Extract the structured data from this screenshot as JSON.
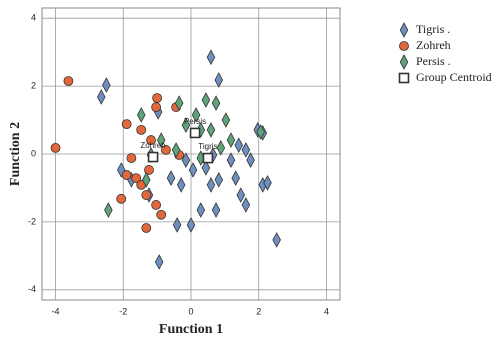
{
  "chart_data": {
    "type": "scatter",
    "x_label": "Function 1",
    "y_label": "Function 2",
    "xlim": [
      -4.4,
      4.4
    ],
    "ylim": [
      -4.3,
      4.3
    ],
    "xticks": [
      -4,
      -2,
      0,
      2,
      4
    ],
    "yticks": [
      -4,
      -2,
      0,
      2,
      4
    ],
    "grid": true,
    "legend": "right",
    "series": [
      {
        "name": "Tigris .",
        "color": "#6f8fbf",
        "marker": "diamond",
        "x": [
          0.59,
          0.82,
          -2.5,
          -2.65,
          -0.97,
          1.97,
          2.12,
          1.41,
          1.62,
          0.65,
          1.18,
          1.76,
          0.44,
          0.82,
          1.32,
          -0.15,
          0.06,
          -0.59,
          -0.29,
          0.59,
          2.12,
          2.26,
          1.47,
          1.62,
          0.29,
          0.74,
          -0.41,
          0,
          -0.94,
          2.53,
          -1.24,
          -1.76,
          -2.06
        ],
        "values": [
          2.85,
          2.18,
          2.03,
          1.68,
          1.24,
          0.71,
          0.62,
          0.26,
          0.12,
          -0.03,
          -0.18,
          -0.18,
          -0.41,
          -0.76,
          -0.71,
          -0.18,
          -0.47,
          -0.71,
          -0.91,
          -0.91,
          -0.91,
          -0.85,
          -1.21,
          -1.5,
          -1.65,
          -1.65,
          -2.09,
          -2.09,
          -3.18,
          -2.53,
          -1.21,
          -0.76,
          -0.47
        ]
      },
      {
        "name": "Zohreh",
        "color": "#e2673a",
        "marker": "circle",
        "x": [
          -3.62,
          -4.0,
          -1.0,
          -1.03,
          -0.44,
          -1.9,
          -1.47,
          -1.18,
          -1.76,
          -1.9,
          -1.62,
          -1.47,
          -1.24,
          -2.06,
          -1.32,
          -1.03,
          -0.88,
          -1.32,
          -0.35,
          -0.74
        ],
        "values": [
          2.15,
          0.18,
          1.65,
          1.38,
          1.38,
          0.88,
          0.71,
          0.41,
          -0.12,
          -0.62,
          -0.71,
          -0.91,
          -0.47,
          -1.32,
          -2.18,
          -1.5,
          -1.79,
          -1.21,
          -0.03,
          0.12
        ]
      },
      {
        "name": "Persis .",
        "color": "#5fa37a",
        "marker": "diamond",
        "x": [
          -1.47,
          -0.35,
          0.44,
          0.74,
          0.15,
          -0.15,
          0.29,
          0.59,
          1.03,
          2.06,
          1.18,
          0.88,
          -0.44,
          -1.18,
          -1.32,
          -2.44,
          0.29,
          -0.88
        ],
        "values": [
          1.15,
          1.5,
          1.59,
          1.5,
          1.15,
          0.85,
          0.71,
          0.71,
          1.0,
          0.65,
          0.41,
          0.18,
          0.12,
          -0.03,
          -0.76,
          -1.65,
          -0.12,
          0.41
        ]
      },
      {
        "name": "Group Centroid",
        "color": "#ffffff",
        "marker": "square",
        "x": [
          -1.12,
          0.12,
          0.5
        ],
        "values": [
          -0.09,
          0.62,
          -0.12
        ],
        "point_labels": [
          "Zohreh",
          "Persis",
          "Tigris"
        ]
      }
    ]
  }
}
